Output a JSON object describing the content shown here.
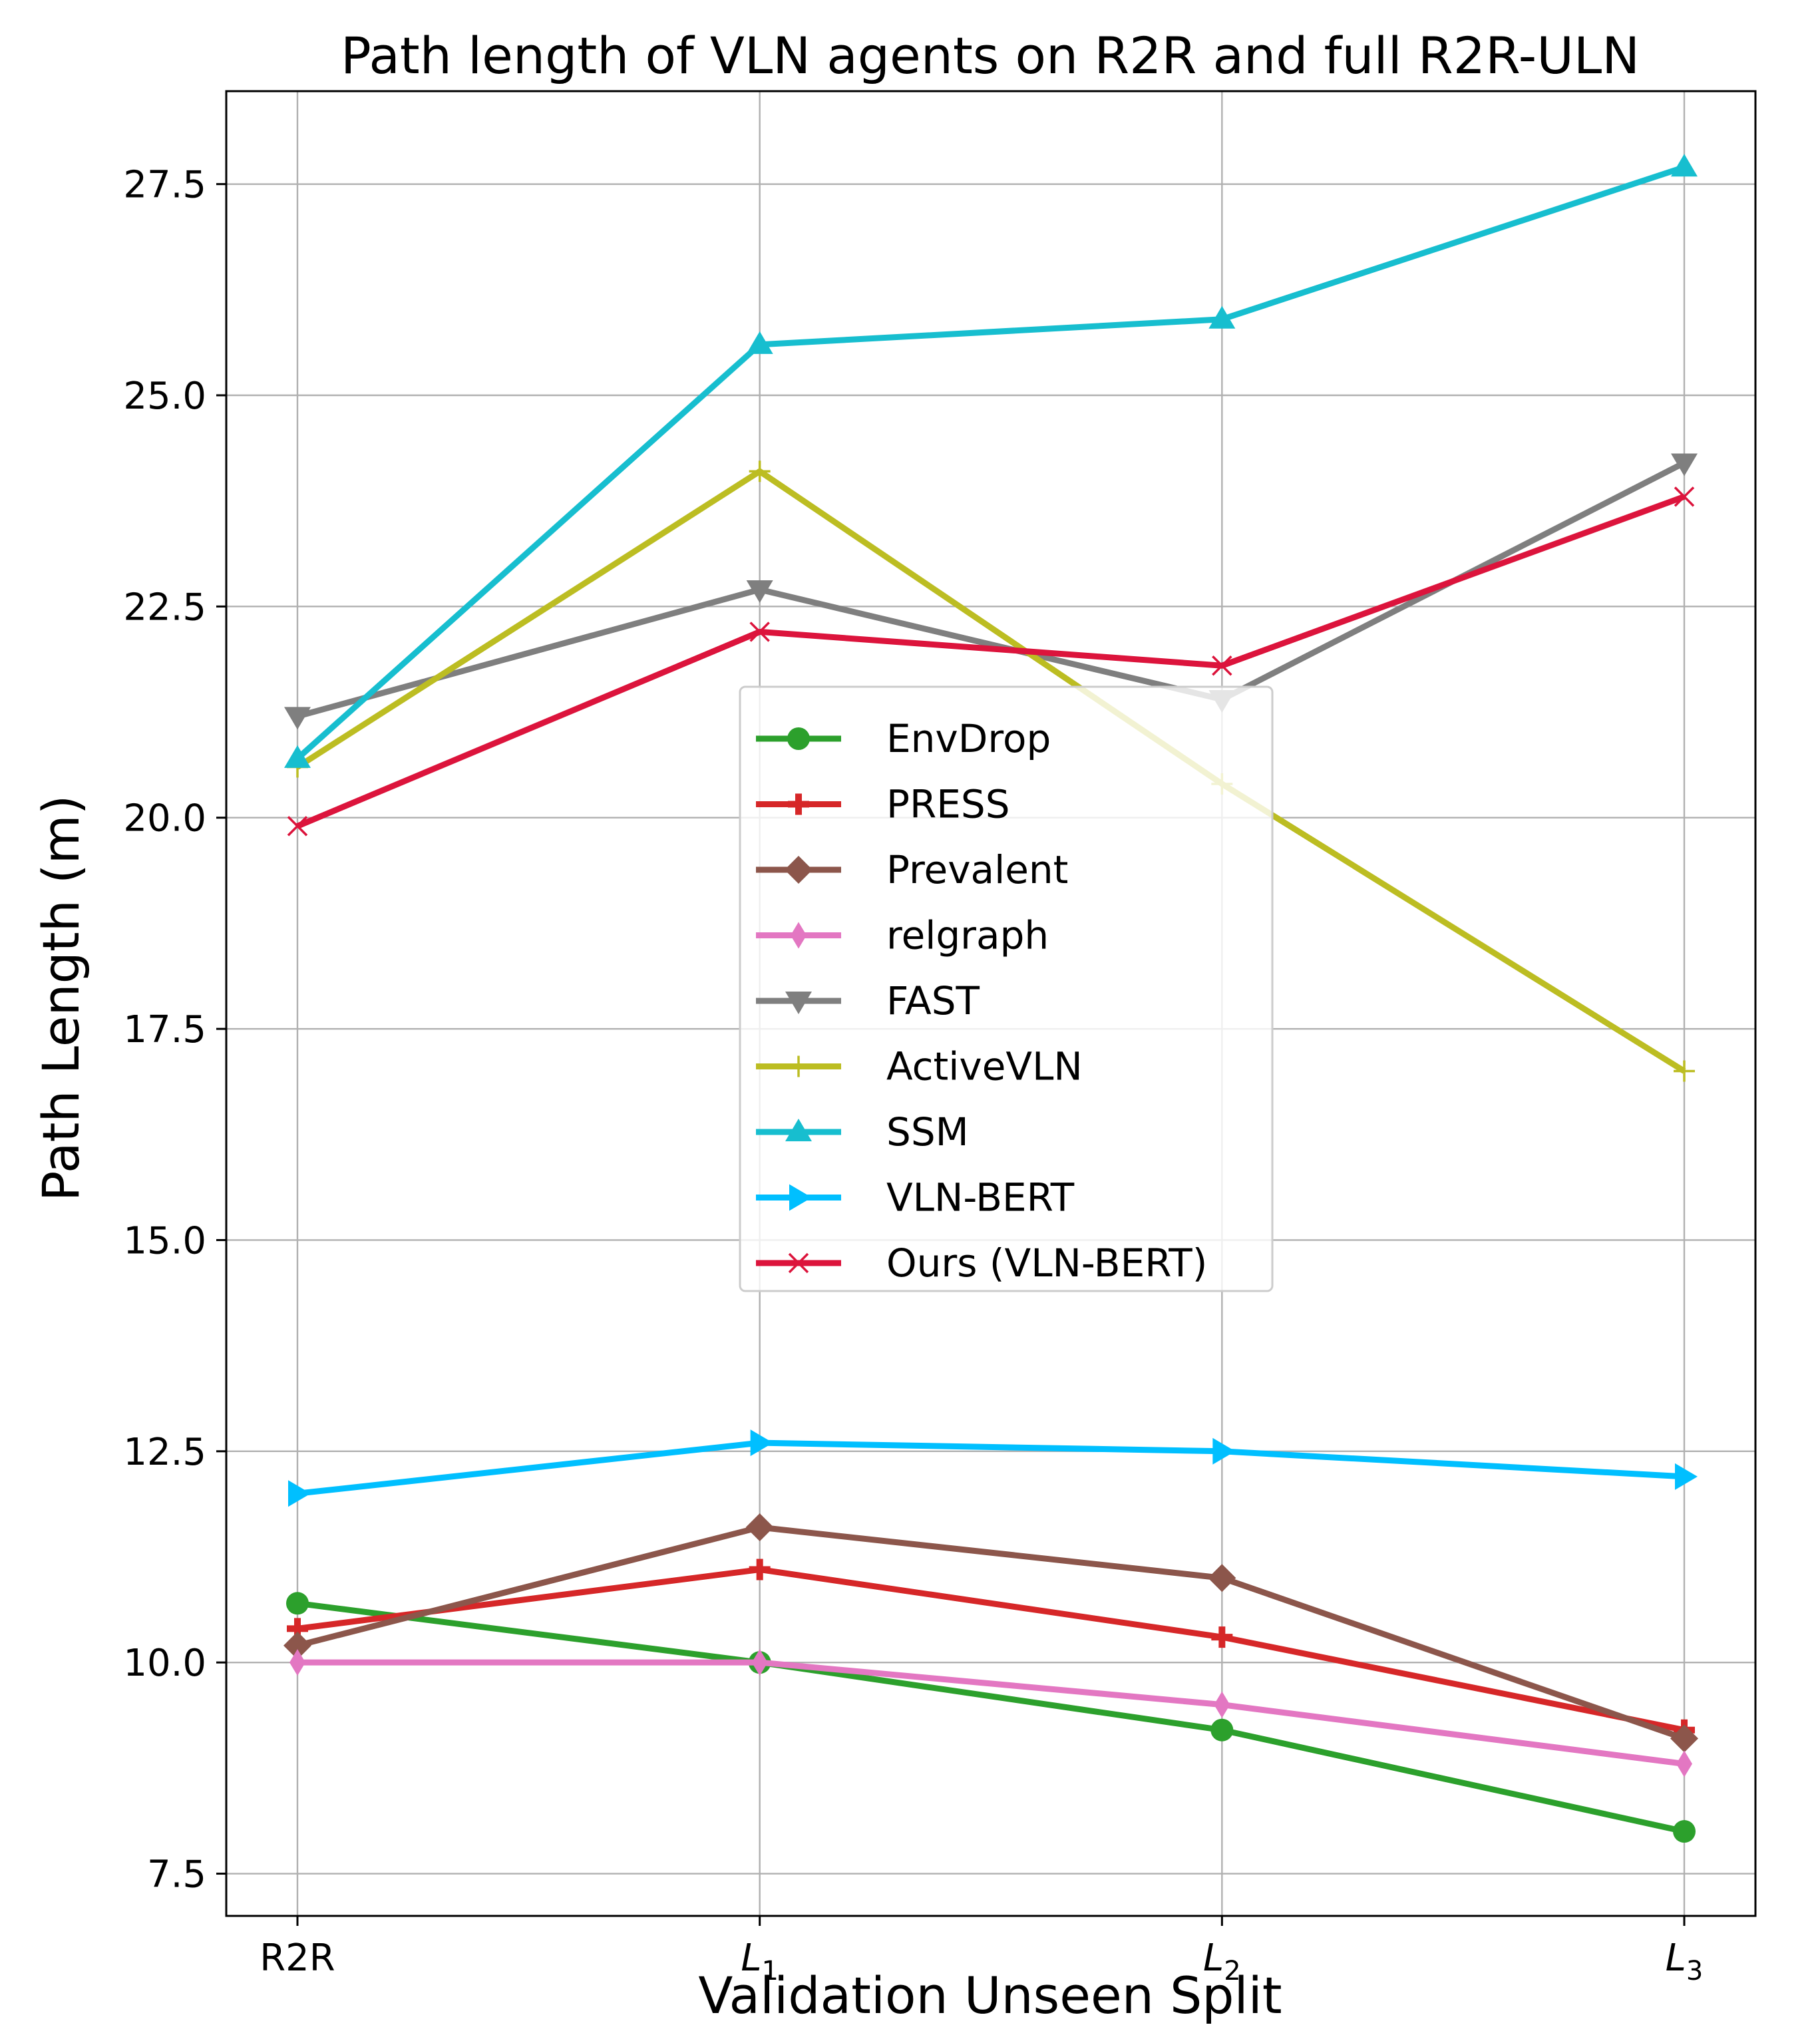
{
  "chart_data": {
    "type": "line",
    "title": "Path length of VLN agents on R2R and full R2R-ULN",
    "xlabel": "Validation Unseen Split",
    "ylabel": "Path Length (m)",
    "categories": [
      {
        "base": "R2R",
        "sub": ""
      },
      {
        "base": "L",
        "sub": "1"
      },
      {
        "base": "L",
        "sub": "2"
      },
      {
        "base": "L",
        "sub": "3"
      }
    ],
    "ylim": [
      7.0,
      28.6
    ],
    "yticks": [
      "7.5",
      "10.0",
      "12.5",
      "15.0",
      "17.5",
      "20.0",
      "22.5",
      "25.0",
      "27.5"
    ],
    "grid": true,
    "legend_position": "center",
    "series": [
      {
        "name": "EnvDrop",
        "color": "#2ca02c",
        "marker": "circle",
        "values": [
          10.7,
          10.0,
          9.2,
          8.0
        ]
      },
      {
        "name": "PRESS",
        "color": "#d62728",
        "marker": "plus-filled",
        "values": [
          10.4,
          11.1,
          10.3,
          9.2
        ]
      },
      {
        "name": "Prevalent",
        "color": "#8c564b",
        "marker": "diamond",
        "values": [
          10.2,
          11.6,
          11.0,
          9.1
        ]
      },
      {
        "name": "relgraph",
        "color": "#e377c2",
        "marker": "thin-diamond",
        "values": [
          10.0,
          10.0,
          9.5,
          8.8
        ]
      },
      {
        "name": "FAST",
        "color": "#7f7f7f",
        "marker": "triangle-down",
        "values": [
          21.2,
          22.7,
          21.4,
          24.2
        ]
      },
      {
        "name": "ActiveVLN",
        "color": "#bcbd22",
        "marker": "plus",
        "values": [
          20.6,
          24.1,
          20.4,
          17.0
        ]
      },
      {
        "name": "SSM",
        "color": "#17becf",
        "marker": "triangle-up",
        "values": [
          20.7,
          25.6,
          25.9,
          27.7
        ]
      },
      {
        "name": "VLN-BERT",
        "color": "#00bfff",
        "marker": "triangle-right",
        "values": [
          12.0,
          12.6,
          12.5,
          12.2
        ]
      },
      {
        "name": "Ours (VLN-BERT)",
        "color": "#dc143c",
        "marker": "x",
        "values": [
          19.9,
          22.2,
          21.8,
          23.8
        ]
      }
    ]
  }
}
